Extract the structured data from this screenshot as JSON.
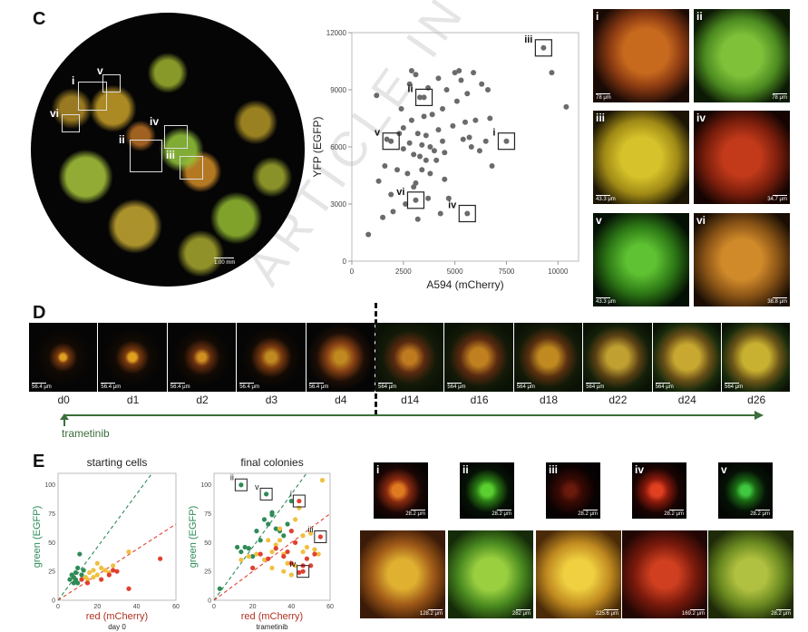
{
  "watermark": "ARTICLE IN PRESS",
  "panels": {
    "c": "C",
    "d": "D",
    "e": "E"
  },
  "panel_c": {
    "well_scale": "1.00 mm",
    "well_boxes": [
      "i",
      "ii",
      "iii",
      "iv",
      "v",
      "vi"
    ],
    "thumbnails": [
      {
        "label": "i",
        "scale": "78 μm"
      },
      {
        "label": "ii",
        "scale": "78 μm"
      },
      {
        "label": "iii",
        "scale": "43.3 μm"
      },
      {
        "label": "iv",
        "scale": "34.7 μm"
      },
      {
        "label": "v",
        "scale": "43.3 μm"
      },
      {
        "label": "vi",
        "scale": "38.8 μm"
      }
    ]
  },
  "panel_d": {
    "frames": [
      {
        "day": "d0",
        "scale": "56.4 μm"
      },
      {
        "day": "d1",
        "scale": "56.4 μm"
      },
      {
        "day": "d2",
        "scale": "56.4 μm"
      },
      {
        "day": "d3",
        "scale": "56.4 μm"
      },
      {
        "day": "d4",
        "scale": "56.4 μm"
      },
      {
        "day": "d14",
        "scale": "564 μm"
      },
      {
        "day": "d16",
        "scale": "564 μm"
      },
      {
        "day": "d18",
        "scale": "564 μm"
      },
      {
        "day": "d22",
        "scale": "564 μm"
      },
      {
        "day": "d24",
        "scale": "564 μm"
      },
      {
        "day": "d26",
        "scale": "564 μm"
      }
    ],
    "drug_label": "trametinib"
  },
  "panel_e": {
    "small_tiles": [
      {
        "label": "i",
        "scale": "28.2 μm"
      },
      {
        "label": "ii",
        "scale": "28.2 μm"
      },
      {
        "label": "iii",
        "scale": "28.2 μm"
      },
      {
        "label": "iv",
        "scale": "28.2 μm"
      },
      {
        "label": "v",
        "scale": "28.2 μm"
      }
    ],
    "large_tiles": [
      {
        "scale": "128.2 μm"
      },
      {
        "scale": "282 μm"
      },
      {
        "scale": "225.6 μm"
      },
      {
        "scale": "169.2 μm"
      },
      {
        "scale": "28.2 μm"
      }
    ]
  },
  "chart_data": [
    {
      "type": "scatter",
      "title": "",
      "xlabel": "A594 (mCherry)",
      "ylabel": "YFP (EGFP)",
      "xlim": [
        0,
        11000
      ],
      "ylim": [
        0,
        12000
      ],
      "xticks": [
        "0",
        "5000",
        "10000"
      ],
      "yticks": [
        "0",
        "3000",
        "6000",
        "9000",
        "12000"
      ],
      "xminor": [
        "2500",
        "7500"
      ],
      "color": "#6b6b6b",
      "points": [
        [
          800,
          1400
        ],
        [
          1200,
          8700
        ],
        [
          1300,
          4200
        ],
        [
          1500,
          2300
        ],
        [
          1600,
          5000
        ],
        [
          1700,
          6400
        ],
        [
          1900,
          3500
        ],
        [
          2000,
          2600
        ],
        [
          2200,
          4800
        ],
        [
          2300,
          6700
        ],
        [
          2400,
          8000
        ],
        [
          2500,
          7000
        ],
        [
          2500,
          5900
        ],
        [
          2600,
          3000
        ],
        [
          2700,
          4600
        ],
        [
          2800,
          9300
        ],
        [
          2800,
          6200
        ],
        [
          2900,
          7400
        ],
        [
          2900,
          10000
        ],
        [
          3000,
          5600
        ],
        [
          3000,
          3900
        ],
        [
          3100,
          9800
        ],
        [
          3100,
          4100
        ],
        [
          3200,
          2200
        ],
        [
          3200,
          6700
        ],
        [
          3300,
          5500
        ],
        [
          3300,
          8600
        ],
        [
          3400,
          6100
        ],
        [
          3400,
          4800
        ],
        [
          3500,
          7600
        ],
        [
          3600,
          6600
        ],
        [
          3600,
          5300
        ],
        [
          3700,
          3300
        ],
        [
          3700,
          9100
        ],
        [
          3800,
          6000
        ],
        [
          3800,
          4600
        ],
        [
          3900,
          7700
        ],
        [
          4000,
          5800
        ],
        [
          4100,
          5300
        ],
        [
          4200,
          6900
        ],
        [
          4200,
          9600
        ],
        [
          4300,
          2500
        ],
        [
          4400,
          8000
        ],
        [
          4400,
          6300
        ],
        [
          4500,
          5700
        ],
        [
          4500,
          4300
        ],
        [
          4600,
          9000
        ],
        [
          4700,
          3300
        ],
        [
          4900,
          7100
        ],
        [
          5000,
          9900
        ],
        [
          5100,
          8400
        ],
        [
          5200,
          10000
        ],
        [
          5300,
          9500
        ],
        [
          5400,
          6400
        ],
        [
          5500,
          7300
        ],
        [
          5600,
          8800
        ],
        [
          5700,
          6500
        ],
        [
          5800,
          6000
        ],
        [
          5900,
          9900
        ],
        [
          6000,
          7400
        ],
        [
          6200,
          5800
        ],
        [
          6300,
          9300
        ],
        [
          6500,
          6300
        ],
        [
          6600,
          9000
        ],
        [
          6700,
          7500
        ],
        [
          6800,
          5000
        ],
        [
          9300,
          11200
        ],
        [
          9700,
          9900
        ],
        [
          10400,
          8100
        ],
        [
          5600,
          2500
        ],
        [
          3100,
          3200
        ],
        [
          7500,
          6300
        ],
        [
          1900,
          6300
        ],
        [
          3500,
          8600
        ]
      ],
      "annotations": [
        {
          "label": "i",
          "x": 7500,
          "y": 6300
        },
        {
          "label": "ii",
          "x": 3500,
          "y": 8600
        },
        {
          "label": "iii",
          "x": 9300,
          "y": 11200
        },
        {
          "label": "iv",
          "x": 5600,
          "y": 2500
        },
        {
          "label": "v",
          "x": 1900,
          "y": 6300
        },
        {
          "label": "vi",
          "x": 3100,
          "y": 3200
        }
      ]
    },
    {
      "type": "scatter",
      "title": "starting cells",
      "xlabel": "red (mCherry)",
      "ylabel": "green (EGFP)",
      "caption": "day 0",
      "xlim": [
        0,
        60
      ],
      "ylim": [
        0,
        110
      ],
      "xticks": [
        "0",
        "20",
        "40",
        "60"
      ],
      "yticks": [
        "0",
        "25",
        "50",
        "75",
        "100"
      ],
      "green_line_slope": 2.3,
      "red_line_slope": 1.1,
      "series": [
        {
          "color": "#2e8b57",
          "points": [
            [
              6,
              18
            ],
            [
              7,
              22
            ],
            [
              8,
              20
            ],
            [
              9,
              24
            ],
            [
              9,
              18
            ],
            [
              10,
              28
            ],
            [
              11,
              40
            ],
            [
              12,
              22
            ],
            [
              13,
              26
            ],
            [
              10,
              15
            ],
            [
              8,
              15
            ]
          ]
        },
        {
          "color": "#f0c040",
          "points": [
            [
              14,
              20
            ],
            [
              16,
              24
            ],
            [
              18,
              26
            ],
            [
              20,
              22
            ],
            [
              22,
              28
            ],
            [
              24,
              26
            ],
            [
              26,
              24
            ],
            [
              28,
              30
            ],
            [
              18,
              20
            ],
            [
              36,
              42
            ],
            [
              20,
              32
            ],
            [
              15,
              18
            ]
          ]
        },
        {
          "color": "#e04030",
          "points": [
            [
              15,
              15
            ],
            [
              22,
              18
            ],
            [
              26,
              22
            ],
            [
              28,
              26
            ],
            [
              30,
              25
            ],
            [
              36,
              10
            ],
            [
              52,
              36
            ],
            [
              12,
              18
            ]
          ]
        }
      ]
    },
    {
      "type": "scatter",
      "title": "final colonies",
      "xlabel": "red (mCherry)",
      "ylabel": "green (EGFP)",
      "caption": "trametinib",
      "xlim": [
        0,
        60
      ],
      "ylim": [
        0,
        110
      ],
      "xticks": [
        "0",
        "20",
        "40",
        "60"
      ],
      "yticks": [
        "0",
        "25",
        "50",
        "75",
        "100"
      ],
      "green_line_slope": 2.3,
      "red_line_slope": 1.25,
      "series": [
        {
          "color": "#2e8b57",
          "points": [
            [
              3,
              10
            ],
            [
              12,
              46
            ],
            [
              14,
              42
            ],
            [
              16,
              46
            ],
            [
              18,
              45
            ],
            [
              20,
              38
            ],
            [
              22,
              60
            ],
            [
              24,
              52
            ],
            [
              26,
              70
            ],
            [
              28,
              66
            ],
            [
              30,
              76
            ],
            [
              32,
              62
            ],
            [
              34,
              60
            ],
            [
              36,
              56
            ],
            [
              40,
              86
            ],
            [
              14,
              100
            ],
            [
              27,
              92
            ],
            [
              38,
              66
            ],
            [
              30,
              74
            ]
          ]
        },
        {
          "color": "#f0c040",
          "points": [
            [
              14,
              35
            ],
            [
              18,
              38
            ],
            [
              22,
              40
            ],
            [
              26,
              35
            ],
            [
              28,
              52
            ],
            [
              30,
              42
            ],
            [
              32,
              48
            ],
            [
              34,
              62
            ],
            [
              36,
              40
            ],
            [
              38,
              32
            ],
            [
              42,
              70
            ],
            [
              44,
              80
            ],
            [
              46,
              56
            ],
            [
              48,
              46
            ],
            [
              50,
              58
            ],
            [
              52,
              44
            ],
            [
              54,
              40
            ],
            [
              56,
              104
            ],
            [
              36,
              25
            ],
            [
              40,
              22
            ],
            [
              42,
              30
            ],
            [
              46,
              42
            ],
            [
              34,
              52
            ],
            [
              30,
              28
            ]
          ]
        },
        {
          "color": "#e04030",
          "points": [
            [
              20,
              28
            ],
            [
              24,
              40
            ],
            [
              28,
              36
            ],
            [
              32,
              45
            ],
            [
              36,
              38
            ],
            [
              38,
              42
            ],
            [
              40,
              60
            ],
            [
              42,
              50
            ],
            [
              44,
              24
            ],
            [
              46,
              30
            ],
            [
              48,
              36
            ],
            [
              50,
              30
            ],
            [
              52,
              40
            ],
            [
              44,
              86
            ],
            [
              55,
              55
            ],
            [
              46,
              25
            ],
            [
              40,
              32
            ]
          ]
        }
      ],
      "annotations": [
        {
          "label": "i",
          "x": 44,
          "y": 86
        },
        {
          "label": "ii",
          "x": 14,
          "y": 100
        },
        {
          "label": "iii",
          "x": 55,
          "y": 55
        },
        {
          "label": "iv",
          "x": 46,
          "y": 25
        },
        {
          "label": "v",
          "x": 27,
          "y": 92
        }
      ]
    }
  ]
}
